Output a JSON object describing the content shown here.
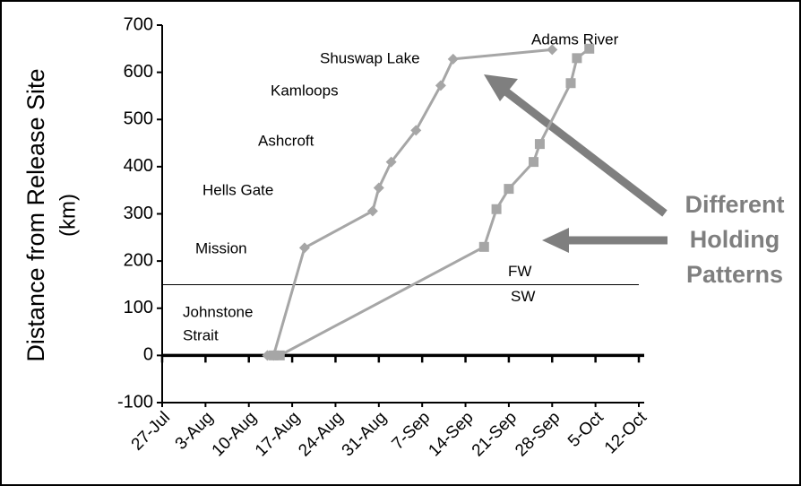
{
  "chart_data": {
    "type": "line",
    "ylabel": [
      "Distance from Release Site",
      "(km)"
    ],
    "xlim": [
      "27-Jul",
      "12-Oct"
    ],
    "xticks": [
      "27-Jul",
      "3-Aug",
      "10-Aug",
      "17-Aug",
      "24-Aug",
      "31-Aug",
      "7-Sep",
      "14-Sep",
      "21-Sep",
      "28-Sep",
      "5-Oct",
      "12-Oct"
    ],
    "ylim": [
      -100,
      700
    ],
    "yticks": [
      -100,
      0,
      100,
      200,
      300,
      400,
      500,
      600,
      700
    ],
    "series": [
      {
        "color": "#a6a6a6",
        "marker": "diamond",
        "x": [
          "13-Aug",
          "14-Aug",
          "19-Aug",
          "30-Aug",
          "31-Aug",
          "2-Sep",
          "6-Sep",
          "10-Sep",
          "12-Sep",
          "28-Sep"
        ],
        "values": [
          0,
          0,
          228,
          306,
          355,
          410,
          477,
          572,
          628,
          648
        ]
      },
      {
        "color": "#a6a6a6",
        "marker": "square",
        "x": [
          "14-Aug",
          "15-Aug",
          "17-Sep",
          "19-Sep",
          "21-Sep",
          "25-Sep",
          "26-Sep",
          "1-Oct",
          "2-Oct",
          "4-Oct"
        ],
        "values": [
          0,
          0,
          230,
          310,
          353,
          410,
          448,
          577,
          630,
          650
        ]
      }
    ],
    "reference_line": {
      "value": 150,
      "labels": [
        "FW",
        "SW"
      ]
    },
    "annotations": [
      "Adams River",
      "Shuswap Lake",
      "Kamloops",
      "Ashcroft",
      "Hells Gate",
      "Mission",
      "Johnstone",
      "Strait"
    ],
    "callout": [
      "Different",
      "Holding",
      "Patterns"
    ]
  }
}
